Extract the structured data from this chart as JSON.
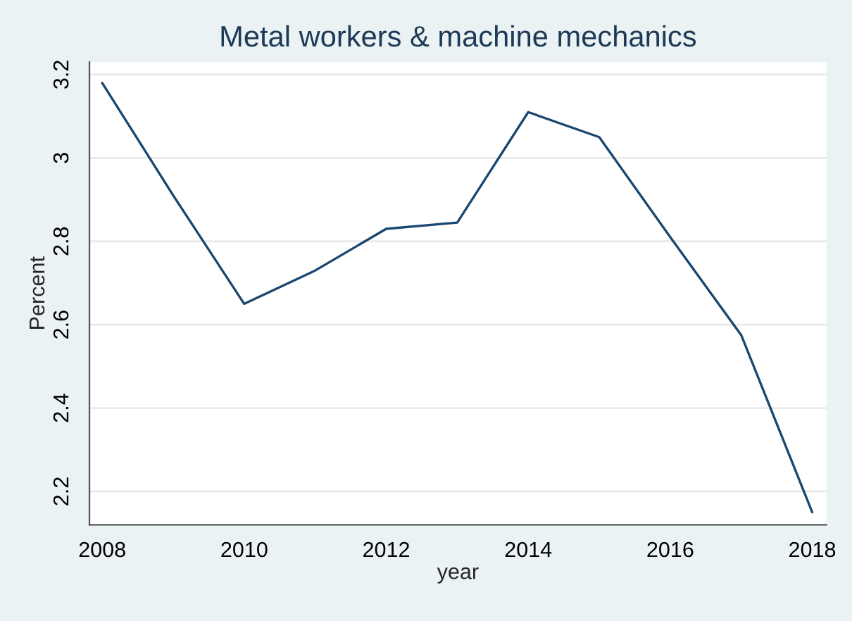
{
  "chart_data": {
    "type": "line",
    "title": "Metal workers & machine mechanics",
    "xlabel": "year",
    "ylabel": "Percent",
    "x": [
      2008,
      2009,
      2010,
      2011,
      2012,
      2013,
      2014,
      2015,
      2016,
      2017,
      2018
    ],
    "series": [
      {
        "color": "#1a476f",
        "values": [
          3.18,
          2.91,
          2.65,
          2.73,
          2.83,
          2.845,
          3.11,
          3.05,
          2.81,
          2.575,
          2.15
        ]
      }
    ],
    "xlim": [
      2007.82,
      2018.2
    ],
    "xticks": [
      2008,
      2010,
      2012,
      2014,
      2016,
      2018
    ],
    "ylim": [
      2.12,
      3.23
    ],
    "yticks": [
      2.2,
      2.4,
      2.6,
      2.8,
      3,
      3.2
    ],
    "grid": "y",
    "marker": "none",
    "line_style": "solid"
  }
}
